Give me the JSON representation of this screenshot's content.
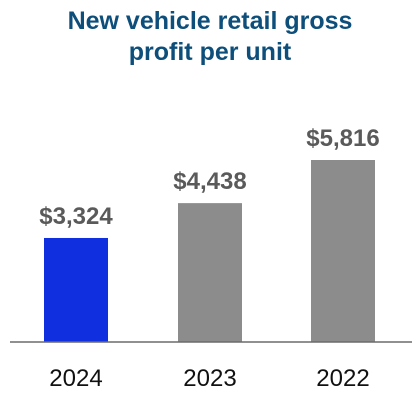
{
  "chart_data": {
    "type": "bar",
    "title_lines": [
      "New vehicle retail gross",
      "profit per unit"
    ],
    "categories": [
      "2024",
      "2023",
      "2022"
    ],
    "values": [
      3324,
      4438,
      5816
    ],
    "value_labels": [
      "$3,324",
      "$4,438",
      "$5,816"
    ],
    "bar_colors": [
      "#1030e0",
      "#8c8c8c",
      "#8c8c8c"
    ],
    "value_label_color": "#5a5a5a",
    "title_color": "#0d4f7a",
    "axis_color": "#6b6b6b",
    "ylim": [
      0,
      6200
    ],
    "grid": false,
    "legend": "none",
    "xlabel": "",
    "ylabel": ""
  }
}
